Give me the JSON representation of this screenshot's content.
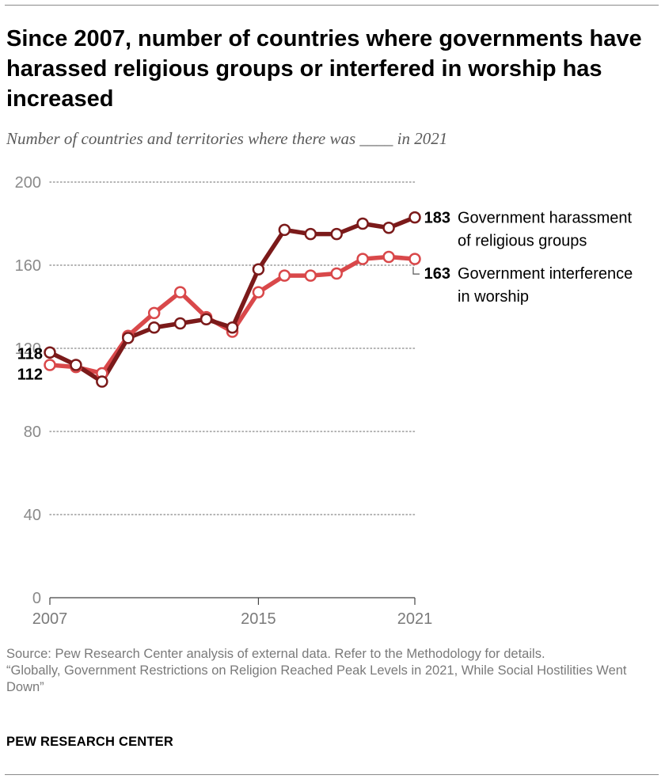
{
  "title": "Since 2007, number of countries where governments have harassed religious groups or interfered in worship has increased",
  "subtitle": "Number of countries and territories where there was ____ in 2021",
  "chart_data": {
    "type": "line",
    "x": [
      2007,
      2008,
      2009,
      2010,
      2011,
      2012,
      2013,
      2014,
      2015,
      2016,
      2017,
      2018,
      2019,
      2020,
      2021
    ],
    "x_ticks": [
      "2007",
      "2015",
      "2021"
    ],
    "y_ticks": [
      "0",
      "40",
      "80",
      "120",
      "160",
      "200"
    ],
    "ylim": [
      0,
      200
    ],
    "grid": "dotted horizontal",
    "series": [
      {
        "name": "Government harassment of religious groups",
        "name_lines": [
          "Government harassment",
          "of religious groups"
        ],
        "values": [
          118,
          112,
          104,
          125,
          130,
          132,
          134,
          130,
          158,
          177,
          175,
          175,
          180,
          178,
          183
        ],
        "end_label": "183",
        "start_label": "118",
        "color": "#7b1a1a"
      },
      {
        "name": "Government interference in worship",
        "name_lines": [
          "Government interference",
          "in worship"
        ],
        "values": [
          112,
          111,
          108,
          126,
          137,
          147,
          135,
          128,
          147,
          155,
          155,
          156,
          163,
          164,
          163
        ],
        "end_label": "163",
        "start_label": "112",
        "color": "#d9484a"
      }
    ]
  },
  "footer": {
    "source": "Source: Pew Research Center analysis of external data. Refer to the Methodology for details.",
    "report": "“Globally, Government Restrictions on Religion Reached Peak Levels in 2021, While Social Hostilities Went Down”",
    "brand": "PEW RESEARCH CENTER"
  }
}
